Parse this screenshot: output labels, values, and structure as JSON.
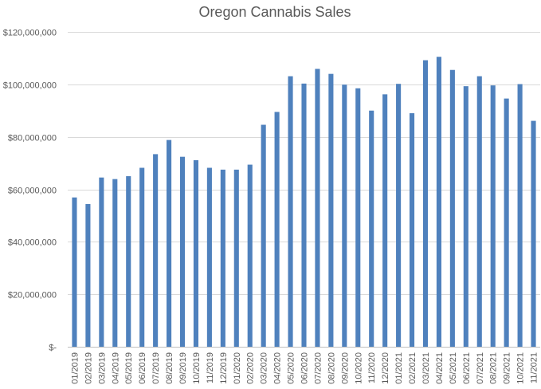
{
  "chart_data": {
    "type": "bar",
    "title": "Oregon Cannabis Sales",
    "xlabel": "",
    "ylabel": "",
    "ylim": [
      0,
      120000000
    ],
    "grid": true,
    "legend": "none",
    "bar_color": "#4F81BD",
    "y_ticks": [
      {
        "value": 0,
        "label": "$-"
      },
      {
        "value": 20000000,
        "label": "$20,000,000"
      },
      {
        "value": 40000000,
        "label": "$40,000,000"
      },
      {
        "value": 60000000,
        "label": "$60,000,000"
      },
      {
        "value": 80000000,
        "label": "$80,000,000"
      },
      {
        "value": 100000000,
        "label": "$100,000,000"
      },
      {
        "value": 120000000,
        "label": "$120,000,000"
      }
    ],
    "categories": [
      "01/2019",
      "02/2019",
      "03/2019",
      "04/2019",
      "05/2019",
      "06/2019",
      "07/2019",
      "08/2019",
      "09/2019",
      "10/2019",
      "11/2019",
      "12/2019",
      "01/2020",
      "02/2020",
      "03/2020",
      "04/2020",
      "05/2020",
      "06/2020",
      "07/2020",
      "08/2020",
      "09/2020",
      "10/2020",
      "11/2020",
      "12/2020",
      "01/2021",
      "02/2021",
      "03/2021",
      "04/2021",
      "05/2021",
      "06/2021",
      "07/2021",
      "08/2021",
      "09/2021",
      "10/2021",
      "11/2021"
    ],
    "values": [
      56900000,
      54400000,
      64500000,
      63900000,
      65000000,
      68200000,
      73400000,
      78800000,
      72400000,
      71100000,
      68200000,
      67500000,
      67500000,
      69400000,
      84600000,
      89500000,
      103100000,
      100300000,
      105900000,
      104000000,
      99900000,
      98500000,
      90000000,
      96200000,
      100200000,
      89000000,
      109200000,
      110500000,
      105500000,
      99300000,
      103100000,
      99600000,
      94600000,
      100100000,
      86100000
    ]
  }
}
